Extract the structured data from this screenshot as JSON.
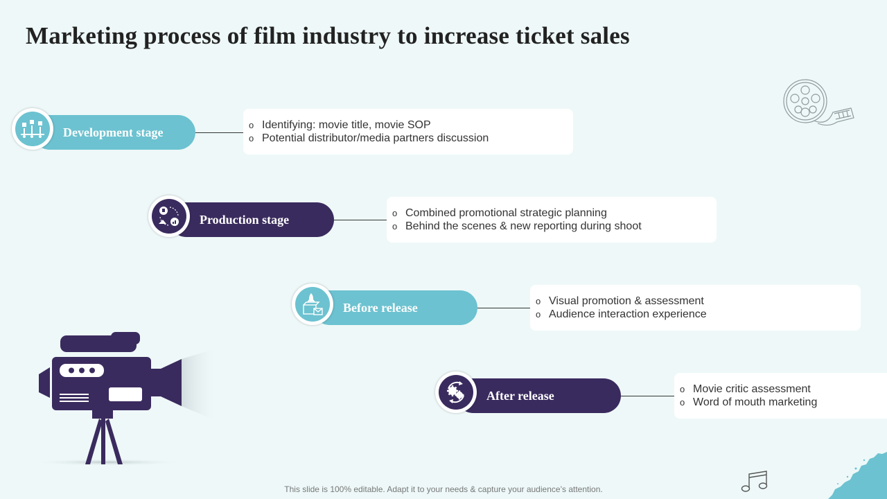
{
  "title": "Marketing process of film industry to increase ticket sales",
  "stages": [
    {
      "label": "Development stage",
      "color": "#6cc2d0",
      "icon": "boxes-flowchart-icon",
      "points": [
        "Identifying: movie title, movie SOP",
        "Potential distributor/media partners discussion"
      ]
    },
    {
      "label": "Production stage",
      "color": "#3a2b5e",
      "icon": "process-cycle-icon",
      "points": [
        "Combined promotional strategic planning",
        "Behind the scenes & new reporting during shoot"
      ]
    },
    {
      "label": "Before release",
      "color": "#6cc2d0",
      "icon": "launch-box-icon",
      "points": [
        "Visual promotion & assessment",
        "Audience interaction experience"
      ]
    },
    {
      "label": "After release",
      "color": "#3a2b5e",
      "icon": "gears-cycle-icon",
      "points": [
        "Movie critic assessment",
        "Word of mouth marketing"
      ]
    }
  ],
  "footer": "This slide is 100% editable. Adapt it to your needs & capture your audience’s attention."
}
